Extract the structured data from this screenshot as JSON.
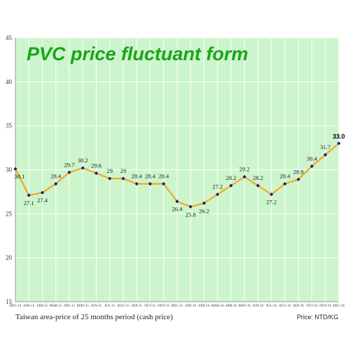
{
  "chart_data": {
    "type": "line",
    "title": "PVC price fluctuant form",
    "categories": [
      "DEC-14",
      "JAN-15",
      "FEB-15",
      "MAR-15",
      "APL-15",
      "MAY-15",
      "JUN-15",
      "JUL-15",
      "AUG-15",
      "SEP-15",
      "OCT-15",
      "NOV-15",
      "DEC-15",
      "JAN-16",
      "FEB-16",
      "MAR-16",
      "APR-16",
      "MAY-16",
      "JUN-16",
      "JUL-16",
      "AUG-16",
      "SEP-16",
      "OCT-16",
      "NOV-16",
      "DEC-16"
    ],
    "values": [
      30.1,
      27.1,
      27.4,
      28.4,
      29.7,
      30.2,
      29.6,
      29,
      29,
      28.4,
      28.4,
      28.4,
      26.4,
      25.8,
      26.2,
      27.2,
      28.2,
      29.2,
      28.2,
      27.2,
      28.4,
      28.9,
      30.4,
      31.7,
      33.0
    ],
    "value_labels": [
      "30.1",
      "27.1",
      "27.4",
      "28.4",
      "29.7",
      "30.2",
      "29.6",
      "29",
      "29",
      "28.4",
      "28.4",
      "28.4",
      "26.4",
      "25.8",
      "26.2",
      "27.2",
      "28.2",
      "29.2",
      "28.2",
      "27.2",
      "28.4",
      "28.9",
      "30.4",
      "31.7",
      "33.0"
    ],
    "ylim": [
      15,
      45
    ],
    "yticks": [
      "15",
      "20",
      "25",
      "30",
      "35",
      "40",
      "45"
    ],
    "grid": true,
    "line_color": "#f5a623",
    "marker_color": "#1a1a7a",
    "plot_background": "#ccf5cc",
    "grid_color": "#ffffff",
    "title_color": "#1aa51a",
    "footnote": "Taiwan area-price of 25 months period (cash price)",
    "price_note": "Price: NTD/KG"
  }
}
